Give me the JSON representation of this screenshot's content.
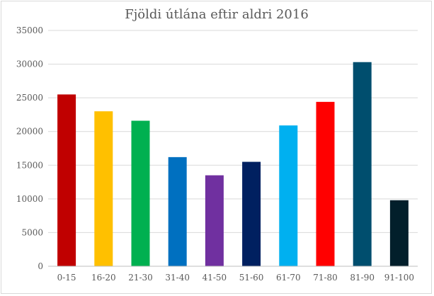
{
  "chart_data": {
    "type": "bar",
    "title": "Fjöldi útlána eftir aldri 2016",
    "xlabel": "",
    "ylabel": "",
    "ylim": [
      0,
      35000
    ],
    "y_ticks": [
      0,
      5000,
      10000,
      15000,
      20000,
      25000,
      30000,
      35000
    ],
    "y_tick_labels": [
      "0",
      "5000",
      "10000",
      "15000",
      "20000",
      "25000",
      "30000",
      "35000"
    ],
    "grid": true,
    "legend": "none",
    "categories": [
      "0-15",
      "16-20",
      "21-30",
      "31-40",
      "41-50",
      "51-60",
      "61-70",
      "71-80",
      "81-90",
      "91-100"
    ],
    "values": [
      25500,
      23000,
      21600,
      16200,
      13500,
      15500,
      20900,
      24400,
      30300,
      9800
    ],
    "colors": [
      "#c00000",
      "#ffc000",
      "#00b050",
      "#0070c0",
      "#7030a0",
      "#002060",
      "#00b0f0",
      "#ff0000",
      "#004e6e",
      "#021f2b"
    ]
  }
}
